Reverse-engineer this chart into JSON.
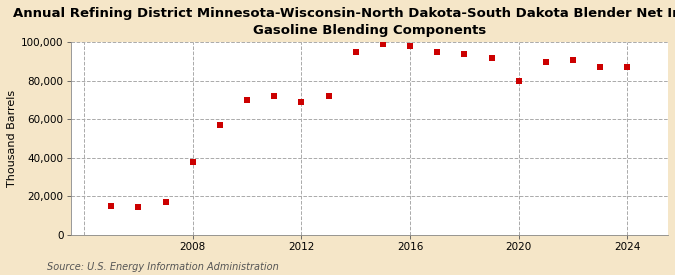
{
  "title": "Annual Refining District Minnesota-Wisconsin-North Dakota-South Dakota Blender Net Input of\nGasoline Blending Components",
  "ylabel": "Thousand Barrels",
  "source": "Source: U.S. Energy Information Administration",
  "figure_bg_color": "#f5e6c8",
  "plot_bg_color": "#ffffff",
  "marker_color": "#cc0000",
  "years": [
    2005,
    2006,
    2007,
    2008,
    2009,
    2010,
    2011,
    2012,
    2013,
    2014,
    2015,
    2016,
    2017,
    2018,
    2019,
    2020,
    2021,
    2022,
    2023,
    2024
  ],
  "values": [
    15000,
    14500,
    17000,
    38000,
    57000,
    70000,
    72000,
    69000,
    72000,
    95000,
    99000,
    98000,
    95000,
    94000,
    92000,
    80000,
    90000,
    91000,
    87000,
    87000
  ],
  "ylim": [
    0,
    100000
  ],
  "yticks": [
    0,
    20000,
    40000,
    60000,
    80000,
    100000
  ],
  "xgrid_lines": [
    2004,
    2008,
    2012,
    2016,
    2020,
    2024
  ],
  "xticks": [
    2008,
    2012,
    2016,
    2020,
    2024
  ],
  "xlim": [
    2003.5,
    2025.5
  ],
  "grid_color": "#aaaaaa",
  "title_fontsize": 9.5,
  "ylabel_fontsize": 8,
  "tick_fontsize": 7.5,
  "source_fontsize": 7
}
